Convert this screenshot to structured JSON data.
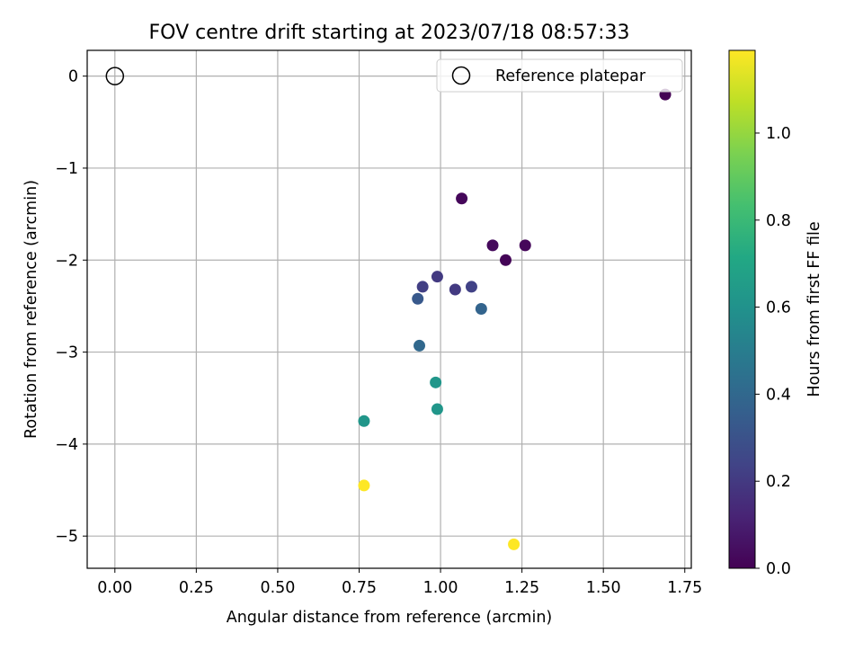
{
  "chart_data": {
    "type": "scatter",
    "title": "FOV centre drift starting at 2023/07/18 08:57:33",
    "xlabel": "Angular distance from reference (arcmin)",
    "ylabel": "Rotation from reference (arcmin)",
    "xlim": [
      -0.085,
      1.77
    ],
    "ylim": [
      -5.35,
      0.28
    ],
    "xticks": [
      0.0,
      0.25,
      0.5,
      0.75,
      1.0,
      1.25,
      1.5,
      1.75
    ],
    "xtick_labels": [
      "0.00",
      "0.25",
      "0.50",
      "0.75",
      "1.00",
      "1.25",
      "1.50",
      "1.75"
    ],
    "yticks": [
      0,
      -1,
      -2,
      -3,
      -4,
      -5
    ],
    "ytick_labels": [
      "0",
      "−1",
      "−2",
      "−3",
      "−4",
      "−5"
    ],
    "grid": true,
    "legend": {
      "position": "top-right",
      "entries": [
        {
          "label": "Reference platepar",
          "marker": "open-circle"
        }
      ]
    },
    "reference_point": {
      "x": 0.0,
      "y": 0.0
    },
    "colormap": "viridis",
    "colorbar": {
      "label": "Hours from first FF file",
      "range": [
        0.0,
        1.19
      ],
      "ticks": [
        0.0,
        0.2,
        0.4,
        0.6,
        0.8,
        1.0
      ],
      "tick_labels": [
        "0.0",
        "0.2",
        "0.4",
        "0.6",
        "0.8",
        "1.0"
      ]
    },
    "series": [
      {
        "points": [
          {
            "x": 1.69,
            "y": -0.2,
            "c": 0.0
          },
          {
            "x": 1.065,
            "y": -1.33,
            "c": 0.02
          },
          {
            "x": 1.16,
            "y": -1.84,
            "c": 0.03
          },
          {
            "x": 1.26,
            "y": -1.84,
            "c": 0.02
          },
          {
            "x": 1.2,
            "y": -2.0,
            "c": 0.01
          },
          {
            "x": 0.99,
            "y": -2.18,
            "c": 0.2
          },
          {
            "x": 0.945,
            "y": -2.29,
            "c": 0.22
          },
          {
            "x": 1.045,
            "y": -2.32,
            "c": 0.2
          },
          {
            "x": 1.095,
            "y": -2.29,
            "c": 0.23
          },
          {
            "x": 0.93,
            "y": -2.42,
            "c": 0.33
          },
          {
            "x": 1.125,
            "y": -2.53,
            "c": 0.38
          },
          {
            "x": 0.935,
            "y": -2.93,
            "c": 0.4
          },
          {
            "x": 0.985,
            "y": -3.33,
            "c": 0.62
          },
          {
            "x": 0.99,
            "y": -3.62,
            "c": 0.62
          },
          {
            "x": 0.765,
            "y": -3.75,
            "c": 0.62
          },
          {
            "x": 0.765,
            "y": -4.45,
            "c": 1.19
          },
          {
            "x": 1.225,
            "y": -5.09,
            "c": 1.19
          }
        ]
      }
    ]
  }
}
